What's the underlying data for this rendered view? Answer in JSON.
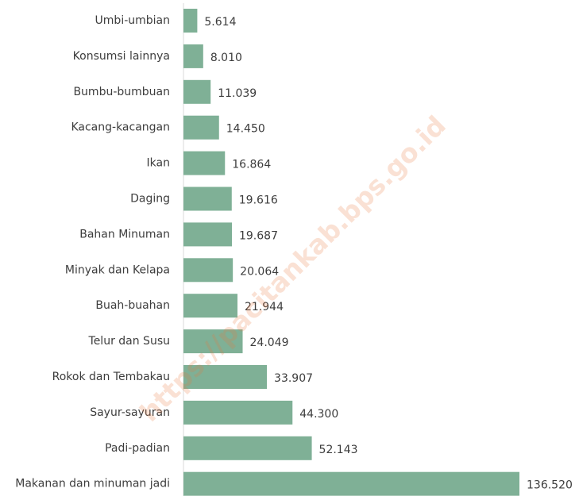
{
  "chart_data": {
    "type": "bar",
    "orientation": "horizontal",
    "categories": [
      "Umbi-umbian",
      "Konsumsi lainnya",
      "Bumbu-bumbuan",
      "Kacang-kacangan",
      "Ikan",
      "Daging",
      "Bahan Minuman",
      "Minyak dan Kelapa",
      "Buah-buahan",
      "Telur dan Susu",
      "Rokok dan Tembakau",
      "Sayur-sayuran",
      "Padi-padian",
      "Makanan dan minuman jadi"
    ],
    "values": [
      5614,
      8010,
      11039,
      14450,
      16864,
      19616,
      19687,
      20064,
      21944,
      24049,
      33907,
      44300,
      52143,
      136520
    ],
    "value_labels": [
      "5.614",
      "8.010",
      "11.039",
      "14.450",
      "16.864",
      "19.616",
      "19.687",
      "20.064",
      "21.944",
      "24.049",
      "33.907",
      "44.300",
      "52.143",
      "136.520"
    ],
    "color": "#7fb096",
    "watermark": "https://pacitankab.bps.go.id"
  }
}
